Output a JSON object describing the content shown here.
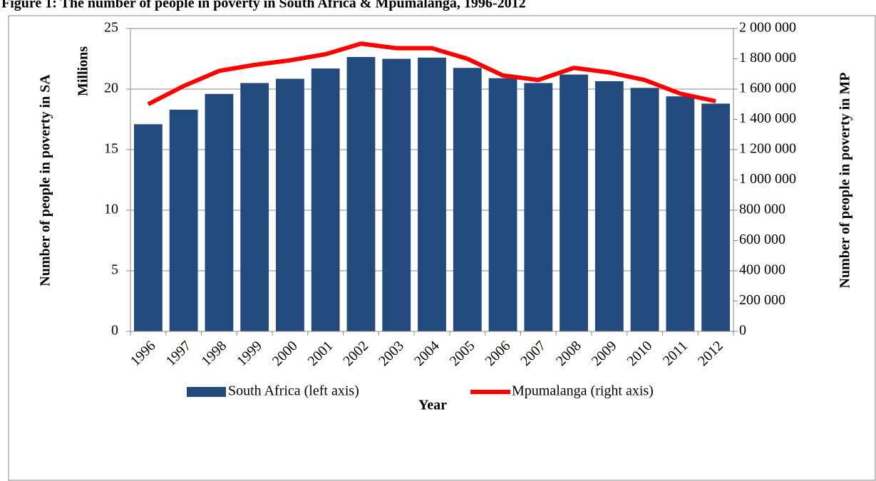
{
  "chart_data": {
    "type": "bar_line",
    "title": "Figure 1: The number of people in poverty in South Africa & Mpumalanga, 1996-2012",
    "x_label": "Year",
    "y_label": "Number of people in poverty in SA",
    "y_unit_label": "Millions",
    "y2_label": "Number of people in poverty in MP",
    "categories": [
      "1996",
      "1997",
      "1998",
      "1999",
      "2000",
      "2001",
      "2002",
      "2003",
      "2004",
      "2005",
      "2006",
      "2007",
      "2008",
      "2009",
      "2010",
      "2011",
      "2012"
    ],
    "series": [
      {
        "name": "South Africa (left axis)",
        "type": "bar",
        "color": "#234a7c",
        "axis": "y",
        "values": [
          17.1,
          18.3,
          19.6,
          20.5,
          20.85,
          21.7,
          22.65,
          22.5,
          22.6,
          21.75,
          20.9,
          20.5,
          21.2,
          20.65,
          20.1,
          19.4,
          18.8
        ]
      },
      {
        "name": "Mpumalanga (right axis)",
        "type": "line",
        "color": "#ff0000",
        "axis": "y2",
        "values": [
          1500000,
          1620000,
          1720000,
          1760000,
          1790000,
          1830000,
          1900000,
          1870000,
          1870000,
          1800000,
          1690000,
          1660000,
          1740000,
          1710000,
          1660000,
          1570000,
          1520000
        ]
      }
    ],
    "ylim": [
      0,
      25
    ],
    "yticks": [
      0,
      5,
      10,
      15,
      20,
      25
    ],
    "y2lim": [
      0,
      2000000
    ],
    "y2ticks": [
      0,
      {
        "value": 200000,
        "label": "200 000"
      },
      {
        "value": 400000,
        "label": "400 000"
      },
      {
        "value": 600000,
        "label": "600 000"
      },
      {
        "value": 800000,
        "label": "800 000"
      },
      {
        "value": 1000000,
        "label": "1 000 000"
      },
      {
        "value": 1200000,
        "label": "1 200 000"
      },
      {
        "value": 1400000,
        "label": "1 400 000"
      },
      {
        "value": 1600000,
        "label": "1 600 000"
      },
      {
        "value": 1800000,
        "label": "1 800 000"
      },
      {
        "value": 2000000,
        "label": "2 000 000"
      }
    ],
    "grid": true,
    "legend": "bottom"
  }
}
